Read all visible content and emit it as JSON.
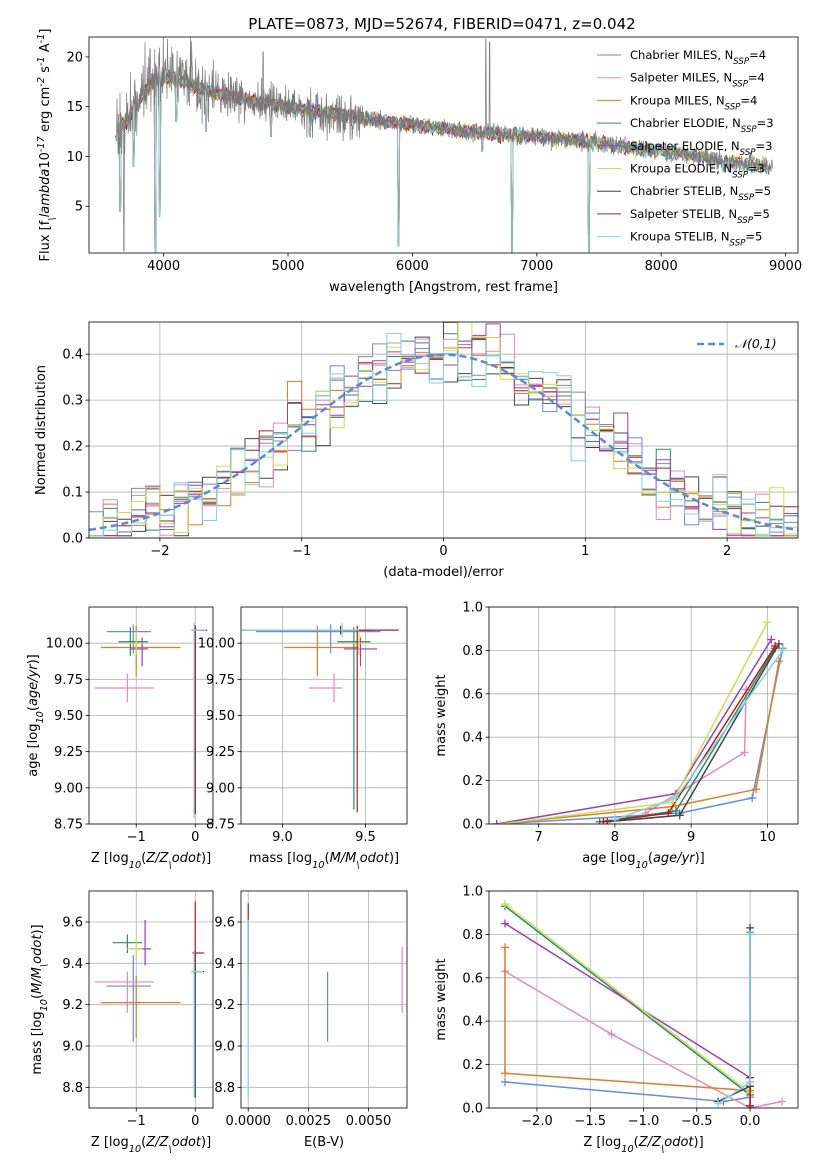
{
  "figure": {
    "title": "PLATE=0873, MJD=52674, FIBERID=0471, z=0.042"
  },
  "series": [
    {
      "name": "Chabrier MILES",
      "nssp": "4",
      "color": "#6a8bd8"
    },
    {
      "name": "Salpeter MILES",
      "nssp": "4",
      "color": "#e48bbf"
    },
    {
      "name": "Kroupa MILES",
      "nssp": "4",
      "color": "#e07b2a"
    },
    {
      "name": "Chabrier ELODIE",
      "nssp": "3",
      "color": "#2f8a6a"
    },
    {
      "name": "Salpeter ELODIE",
      "nssp": "3",
      "color": "#9b3fb5"
    },
    {
      "name": "Kroupa ELODIE",
      "nssp": "3",
      "color": "#c9e055"
    },
    {
      "name": "Chabrier STELIB",
      "nssp": "5",
      "color": "#444444"
    },
    {
      "name": "Salpeter STELIB",
      "nssp": "5",
      "color": "#b51b1b"
    },
    {
      "name": "Kroupa STELIB",
      "nssp": "5",
      "color": "#7fd4df"
    }
  ],
  "chart_data": [
    {
      "id": "spectrum",
      "type": "line",
      "xlabel": "wavelength [Angstrom, rest frame]",
      "ylabel": "Flux [f$_\\lambda$10$^{-17}$ erg cm$^{-2}$ s$^{-1}$ A$^{-1}$]",
      "xlim": [
        3400,
        9100
      ],
      "ylim": [
        0.3,
        22
      ],
      "xticks": [
        4000,
        5000,
        6000,
        7000,
        8000,
        9000
      ],
      "yticks": [
        5,
        10,
        15,
        20
      ],
      "legend": "top-right",
      "grid": false,
      "continuum": [
        [
          3620,
          12.5
        ],
        [
          3700,
          13.5
        ],
        [
          3800,
          15.5
        ],
        [
          3900,
          17.5
        ],
        [
          4000,
          18.0
        ],
        [
          4100,
          17.8
        ],
        [
          4200,
          17.3
        ],
        [
          4300,
          16.8
        ],
        [
          4500,
          16.2
        ],
        [
          4700,
          15.6
        ],
        [
          4900,
          15.2
        ],
        [
          5200,
          14.6
        ],
        [
          5500,
          14.0
        ],
        [
          5800,
          13.5
        ],
        [
          6100,
          13.0
        ],
        [
          6400,
          12.6
        ],
        [
          6700,
          12.3
        ],
        [
          7000,
          12.0
        ],
        [
          7400,
          11.5
        ],
        [
          7800,
          10.8
        ],
        [
          8200,
          10.2
        ],
        [
          8600,
          9.4
        ],
        [
          8900,
          9.0
        ]
      ],
      "dips": [
        [
          3650,
          4.5
        ],
        [
          3760,
          9.0
        ],
        [
          3935,
          0.3
        ],
        [
          3970,
          4.0
        ],
        [
          4102,
          13.5
        ],
        [
          4340,
          12.5
        ],
        [
          4861,
          12.0
        ],
        [
          5175,
          12.0
        ],
        [
          5890,
          1.0
        ],
        [
          6563,
          10.5
        ],
        [
          6800,
          0.3
        ],
        [
          7420,
          0.3
        ],
        [
          8500,
          8.5
        ],
        [
          8542,
          8.5
        ],
        [
          8662,
          8.6
        ]
      ],
      "data_spikes": [
        [
          3850,
          21.5
        ],
        [
          3890,
          20.8
        ],
        [
          4030,
          21.8
        ],
        [
          4800,
          20.5
        ],
        [
          6590,
          21.8
        ],
        [
          6620,
          21.5
        ]
      ]
    },
    {
      "id": "residual-hist",
      "type": "histogram",
      "xlabel": "(data-model)/error",
      "ylabel": "Normed distribution",
      "xlim": [
        -2.5,
        2.5
      ],
      "ylim": [
        0,
        0.47
      ],
      "xticks": [
        -2,
        -1,
        0,
        1,
        2
      ],
      "yticks": [
        0.0,
        0.1,
        0.2,
        0.3,
        0.4
      ],
      "grid": true,
      "bin_width": 0.1,
      "reference": {
        "label": "$\\mathcal{N}(0,1)$",
        "mu": 0,
        "sigma": 1,
        "color": "#5b8ad8"
      }
    },
    {
      "id": "age-vs-Z",
      "type": "errorbar",
      "xlabel": "Z [log$_{10}$($Z/Z_\\odot$)]",
      "ylabel": "age  [log$_{10}$($age/yr$)]",
      "xlim": [
        -1.8,
        0.3
      ],
      "ylim": [
        8.75,
        10.25
      ],
      "xticks": [
        -1,
        0
      ],
      "yticks": [
        8.75,
        9.0,
        9.25,
        9.5,
        9.75,
        10.0
      ],
      "grid": true,
      "points": [
        {
          "series": 0,
          "x": -1.05,
          "y": 10.08,
          "xerr": [
            0.45,
            0.3
          ],
          "yerr": [
            0.15,
            0.05
          ]
        },
        {
          "series": 1,
          "x": -1.15,
          "y": 9.69,
          "xerr": [
            0.55,
            0.45
          ],
          "yerr": [
            0.1,
            0.1
          ]
        },
        {
          "series": 2,
          "x": -1.0,
          "y": 9.97,
          "xerr": [
            0.6,
            0.75
          ],
          "yerr": [
            0.2,
            0.15
          ]
        },
        {
          "series": 3,
          "x": -1.1,
          "y": 10.01,
          "xerr": [
            0.2,
            0.3
          ],
          "yerr": [
            0.1,
            0.1
          ]
        },
        {
          "series": 4,
          "x": -0.9,
          "y": 9.96,
          "xerr": [
            0.2,
            0.1
          ],
          "yerr": [
            0.12,
            0.08
          ]
        },
        {
          "series": 5,
          "x": -1.0,
          "y": 10.0,
          "xerr": [
            0.15,
            0.15
          ],
          "yerr": [
            0.08,
            0.08
          ]
        },
        {
          "series": 6,
          "x": 0.0,
          "y": 10.09,
          "xerr": [
            0.05,
            0.2
          ],
          "yerr": [
            1.27,
            0.03
          ]
        },
        {
          "series": 7,
          "x": 0.0,
          "y": 10.09,
          "xerr": [
            0.0,
            0.2
          ],
          "yerr": [
            1.27,
            0.03
          ]
        },
        {
          "series": 8,
          "x": -0.02,
          "y": 10.09,
          "xerr": [
            0.05,
            0.2
          ],
          "yerr": [
            1.3,
            0.05
          ]
        }
      ]
    },
    {
      "id": "age-vs-mass",
      "type": "errorbar",
      "xlabel": "mass [log$_{10}$($M/M_\\odot$)]",
      "ylabel": "",
      "xlim": [
        8.75,
        9.75
      ],
      "ylim": [
        8.75,
        10.25
      ],
      "xticks": [
        9.0,
        9.5
      ],
      "yticks": [
        8.75,
        9.0,
        9.25,
        9.5,
        9.75,
        10.0
      ],
      "grid": true,
      "points": [
        {
          "series": 0,
          "x": 9.29,
          "y": 10.08,
          "xerr": [
            0.45,
            0.3
          ],
          "yerr": [
            0.15,
            0.05
          ]
        },
        {
          "series": 1,
          "x": 9.31,
          "y": 9.69,
          "xerr": [
            0.15,
            0.05
          ],
          "yerr": [
            0.1,
            0.1
          ]
        },
        {
          "series": 2,
          "x": 9.21,
          "y": 9.97,
          "xerr": [
            0.2,
            0.25
          ],
          "yerr": [
            0.2,
            0.15
          ]
        },
        {
          "series": 3,
          "x": 9.43,
          "y": 10.01,
          "xerr": [
            0.1,
            0.1
          ],
          "yerr": [
            1.16,
            0.1
          ]
        },
        {
          "series": 4,
          "x": 9.47,
          "y": 9.96,
          "xerr": [
            0.1,
            0.1
          ],
          "yerr": [
            0.12,
            0.08
          ]
        },
        {
          "series": 5,
          "x": 9.46,
          "y": 10.0,
          "xerr": [
            0.08,
            0.08
          ],
          "yerr": [
            0.08,
            0.08
          ]
        },
        {
          "series": 6,
          "x": 9.35,
          "y": 10.09,
          "xerr": [
            0.6,
            0.2
          ],
          "yerr": [
            0.03,
            0.03
          ]
        },
        {
          "series": 7,
          "x": 9.45,
          "y": 10.09,
          "xerr": [
            0.1,
            0.25
          ],
          "yerr": [
            1.26,
            0.03
          ]
        },
        {
          "series": 8,
          "x": 9.36,
          "y": 10.09,
          "xerr": [
            0.61,
            0.1
          ],
          "yerr": [
            0.05,
            0.05
          ]
        }
      ]
    },
    {
      "id": "weight-vs-age",
      "type": "line",
      "xlabel": "age  [log$_{10}$($age/yr$)]",
      "ylabel": "mass weight",
      "xlim": [
        6.35,
        10.4
      ],
      "ylim": [
        0,
        1
      ],
      "xticks": [
        7,
        8,
        9,
        10
      ],
      "yticks": [
        0.0,
        0.2,
        0.4,
        0.6,
        0.8,
        1.0
      ],
      "grid": true,
      "lines": [
        {
          "series": 0,
          "points": [
            [
              6.45,
              0.0
            ],
            [
              8.85,
              0.05
            ],
            [
              9.8,
              0.12
            ],
            [
              10.2,
              0.81
            ]
          ]
        },
        {
          "series": 1,
          "points": [
            [
              8.4,
              0.05
            ],
            [
              9.7,
              0.33
            ],
            [
              9.72,
              0.62
            ]
          ]
        },
        {
          "series": 2,
          "points": [
            [
              6.45,
              0.0
            ],
            [
              8.75,
              0.08
            ],
            [
              9.85,
              0.16
            ],
            [
              10.15,
              0.75
            ]
          ]
        },
        {
          "series": 3,
          "points": [
            [
              7.8,
              0.01
            ],
            [
              8.8,
              0.06
            ],
            [
              10.1,
              0.81
            ]
          ]
        },
        {
          "series": 4,
          "points": [
            [
              6.45,
              0.0
            ],
            [
              8.8,
              0.14
            ],
            [
              10.05,
              0.85
            ]
          ]
        },
        {
          "series": 5,
          "points": [
            [
              6.5,
              0.0
            ],
            [
              8.75,
              0.1
            ],
            [
              10.0,
              0.93
            ]
          ]
        },
        {
          "series": 6,
          "points": [
            [
              7.9,
              0.01
            ],
            [
              8.85,
              0.04
            ],
            [
              10.15,
              0.83
            ]
          ]
        },
        {
          "series": 7,
          "points": [
            [
              7.85,
              0.01
            ],
            [
              8.7,
              0.05
            ],
            [
              10.1,
              0.82
            ]
          ]
        },
        {
          "series": 8,
          "points": [
            [
              8.0,
              0.02
            ],
            [
              8.8,
              0.12
            ],
            [
              10.2,
              0.8
            ]
          ]
        }
      ]
    },
    {
      "id": "mass-vs-Z",
      "type": "errorbar",
      "xlabel": "Z [log$_{10}$($Z/Z_\\odot$)]",
      "ylabel": "mass [log$_{10}$($M/M_\\odot$)]",
      "xlim": [
        -1.8,
        0.3
      ],
      "ylim": [
        8.7,
        9.75
      ],
      "xticks": [
        -1,
        0
      ],
      "yticks": [
        8.8,
        9.0,
        9.2,
        9.4,
        9.6
      ],
      "grid": true,
      "points": [
        {
          "series": 0,
          "x": -1.05,
          "y": 9.29,
          "xerr": [
            0.45,
            0.3
          ],
          "yerr": [
            0.27,
            0.15
          ]
        },
        {
          "series": 1,
          "x": -1.15,
          "y": 9.31,
          "xerr": [
            0.55,
            0.45
          ],
          "yerr": [
            0.15,
            0.05
          ]
        },
        {
          "series": 2,
          "x": -1.0,
          "y": 9.21,
          "xerr": [
            0.6,
            0.75
          ],
          "yerr": [
            0.17,
            0.13
          ]
        },
        {
          "series": 3,
          "x": -1.15,
          "y": 9.5,
          "xerr": [
            0.25,
            0.25
          ],
          "yerr": [
            0.05,
            0.04
          ]
        },
        {
          "series": 4,
          "x": -0.85,
          "y": 9.47,
          "xerr": [
            0.25,
            0.1
          ],
          "yerr": [
            0.08,
            0.14
          ]
        },
        {
          "series": 5,
          "x": -1.0,
          "y": 9.47,
          "xerr": [
            0.15,
            0.1
          ],
          "yerr": [
            0.05,
            0.05
          ]
        },
        {
          "series": 6,
          "x": 0.0,
          "y": 9.36,
          "xerr": [
            0.05,
            0.15
          ],
          "yerr": [
            0.61,
            0.1
          ]
        },
        {
          "series": 7,
          "x": 0.0,
          "y": 9.45,
          "xerr": [
            0.05,
            0.15
          ],
          "yerr": [
            0.1,
            0.25
          ]
        },
        {
          "series": 8,
          "x": -0.02,
          "y": 9.36,
          "xerr": [
            0.05,
            0.15
          ],
          "yerr": [
            0.61,
            0.1
          ]
        }
      ]
    },
    {
      "id": "mass-vs-ebv",
      "type": "errorbar",
      "xlabel": "E(B-V)",
      "ylabel": "",
      "xlim": [
        -0.0003,
        0.0066
      ],
      "ylim": [
        8.7,
        9.75
      ],
      "xticks": [
        0.0,
        0.0025,
        0.005
      ],
      "xticklabels": [
        "0.0000",
        "0.0025",
        "0.0050"
      ],
      "yticks": [
        8.8,
        9.0,
        9.2,
        9.4,
        9.6
      ],
      "grid": true,
      "points": [
        {
          "series": 0,
          "x": 0.0033,
          "y": 9.19,
          "xerr": [
            0,
            0
          ],
          "yerr": [
            0.17,
            0.17
          ]
        },
        {
          "series": 1,
          "x": 0.0064,
          "y": 9.31,
          "xerr": [
            0,
            0
          ],
          "yerr": [
            0.15,
            0.17
          ]
        },
        {
          "series": 7,
          "x": 0.0,
          "y": 9.45,
          "xerr": [
            0,
            0
          ],
          "yerr": [
            0.1,
            0.24
          ]
        },
        {
          "series": 3,
          "x": 0.0,
          "y": 9.4,
          "xerr": [
            0,
            0
          ],
          "yerr": [
            0.2,
            0.2
          ]
        },
        {
          "series": 8,
          "x": 0.0,
          "y": 9.36,
          "xerr": [
            0,
            0
          ],
          "yerr": [
            0.61,
            0.25
          ]
        }
      ]
    },
    {
      "id": "weight-vs-Z",
      "type": "line",
      "xlabel": "Z [log$_{10}$($Z/Z_\\odot$)]",
      "ylabel": "mass weight",
      "xlim": [
        -2.45,
        0.45
      ],
      "ylim": [
        0,
        1
      ],
      "xticks": [
        -2.0,
        -1.5,
        -1.0,
        -0.5,
        0.0
      ],
      "yticklabels_fmt": "1",
      "yticks": [
        0.0,
        0.2,
        0.4,
        0.6,
        0.8,
        1.0
      ],
      "grid": true,
      "lines": [
        {
          "series": 0,
          "points": [
            [
              -2.3,
              0.12
            ],
            [
              -0.25,
              0.03
            ],
            [
              0.0,
              0.05
            ],
            [
              0.0,
              0.81
            ]
          ]
        },
        {
          "series": 1,
          "points": [
            [
              -2.3,
              0.63
            ],
            [
              -1.3,
              0.34
            ],
            [
              0.0,
              0.0
            ],
            [
              0.3,
              0.03
            ]
          ]
        },
        {
          "series": 2,
          "points": [
            [
              -2.3,
              0.74
            ],
            [
              -2.3,
              0.16
            ],
            [
              0.0,
              0.08
            ],
            [
              0.0,
              0.0
            ]
          ]
        },
        {
          "series": 3,
          "points": [
            [
              -2.3,
              0.93
            ],
            [
              0.0,
              0.06
            ]
          ]
        },
        {
          "series": 4,
          "points": [
            [
              -2.3,
              0.85
            ],
            [
              0.0,
              0.14
            ]
          ]
        },
        {
          "series": 5,
          "points": [
            [
              -2.3,
              0.94
            ],
            [
              0.0,
              0.07
            ]
          ]
        },
        {
          "series": 6,
          "points": [
            [
              -0.3,
              0.03
            ],
            [
              0.0,
              0.1
            ],
            [
              0.0,
              0.83
            ]
          ]
        },
        {
          "series": 7,
          "points": [
            [
              0.0,
              0.01
            ],
            [
              0.0,
              0.14
            ]
          ]
        },
        {
          "series": 8,
          "points": [
            [
              -0.3,
              0.02
            ],
            [
              0.0,
              0.12
            ],
            [
              0.0,
              0.8
            ]
          ]
        }
      ]
    }
  ]
}
